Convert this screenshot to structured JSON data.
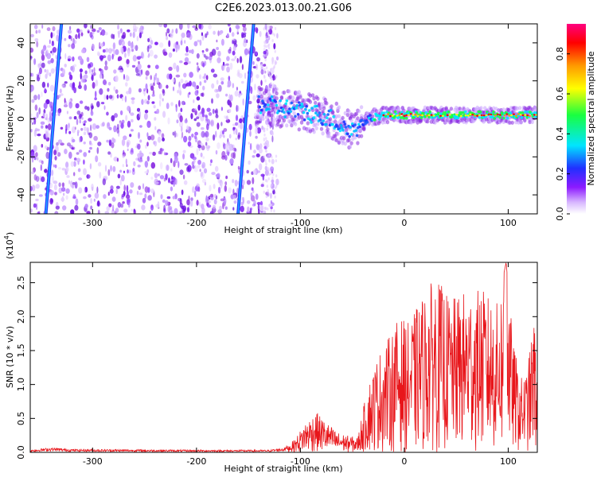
{
  "title": "C2E6.2023.013.00.21.G06",
  "chart_data": [
    {
      "type": "heatmap",
      "xlabel": "Height of straight line (km)",
      "ylabel": "Frequency (Hz)",
      "xlim": [
        -360,
        128
      ],
      "ylim": [
        -50,
        50
      ],
      "xticks": [
        -300,
        -200,
        -100,
        0,
        100
      ],
      "yticks": [
        -40,
        -20,
        0,
        20,
        40
      ],
      "colorbar": {
        "label": "Normalized spectral amplitude",
        "range": [
          0.0,
          0.95
        ],
        "ticks": [
          0.0,
          0.2,
          0.4,
          0.6,
          0.8
        ],
        "colors": [
          "#ffffff",
          "#d8b8ff",
          "#8c1aff",
          "#2030ff",
          "#00e5ff",
          "#19ff40",
          "#ffff00",
          "#ff9900",
          "#ff0000",
          "#ff0080"
        ]
      },
      "features": {
        "noise_region_x": [
          -360,
          -130
        ],
        "diagonal_streaks": [
          {
            "x_at_bottom": -345,
            "x_at_top": -330
          },
          {
            "x_at_bottom": -160,
            "x_at_top": -145
          }
        ],
        "signal_track": [
          {
            "x": -140,
            "y": 8
          },
          {
            "x": -120,
            "y": 6
          },
          {
            "x": -100,
            "y": 4
          },
          {
            "x": -80,
            "y": 2
          },
          {
            "x": -70,
            "y": 0
          },
          {
            "x": -60,
            "y": -4
          },
          {
            "x": -50,
            "y": -6
          },
          {
            "x": -40,
            "y": -2
          },
          {
            "x": -30,
            "y": 1
          },
          {
            "x": -20,
            "y": 2
          },
          {
            "x": 0,
            "y": 2
          },
          {
            "x": 50,
            "y": 2
          },
          {
            "x": 100,
            "y": 2
          },
          {
            "x": 128,
            "y": 2
          }
        ]
      }
    },
    {
      "type": "line",
      "xlabel": "Height of straight line (km)",
      "ylabel": "SNR (10 * v/v)",
      "yunit": "(x10⁴)",
      "yunit_base": "(x10",
      "yunit_exp": "4",
      "yunit_close": ")",
      "xlim": [
        -360,
        128
      ],
      "ylim": [
        0.0,
        2.8
      ],
      "xticks": [
        -300,
        -200,
        -100,
        0,
        100
      ],
      "yticks": [
        "0.0",
        "0.5",
        "1.0",
        "1.5",
        "2.0",
        "2.5"
      ],
      "color": "#e8161b",
      "envelope": [
        {
          "x": -360,
          "y": 0.03
        },
        {
          "x": -340,
          "y": 0.06
        },
        {
          "x": -320,
          "y": 0.04
        },
        {
          "x": -200,
          "y": 0.03
        },
        {
          "x": -130,
          "y": 0.03
        },
        {
          "x": -115,
          "y": 0.06
        },
        {
          "x": -105,
          "y": 0.2
        },
        {
          "x": -95,
          "y": 0.45
        },
        {
          "x": -85,
          "y": 0.6
        },
        {
          "x": -75,
          "y": 0.45
        },
        {
          "x": -65,
          "y": 0.3
        },
        {
          "x": -55,
          "y": 0.25
        },
        {
          "x": -45,
          "y": 0.22
        },
        {
          "x": -35,
          "y": 1.0
        },
        {
          "x": -25,
          "y": 1.45
        },
        {
          "x": -15,
          "y": 1.7
        },
        {
          "x": -5,
          "y": 2.0
        },
        {
          "x": 5,
          "y": 1.9
        },
        {
          "x": 15,
          "y": 2.25
        },
        {
          "x": 30,
          "y": 2.6
        },
        {
          "x": 45,
          "y": 2.25
        },
        {
          "x": 60,
          "y": 2.4
        },
        {
          "x": 75,
          "y": 2.4
        },
        {
          "x": 90,
          "y": 2.2
        },
        {
          "x": 98,
          "y": 2.8
        },
        {
          "x": 105,
          "y": 1.6
        },
        {
          "x": 112,
          "y": 1.1
        },
        {
          "x": 118,
          "y": 1.2
        },
        {
          "x": 125,
          "y": 2.0
        },
        {
          "x": 128,
          "y": 1.3
        }
      ]
    }
  ]
}
